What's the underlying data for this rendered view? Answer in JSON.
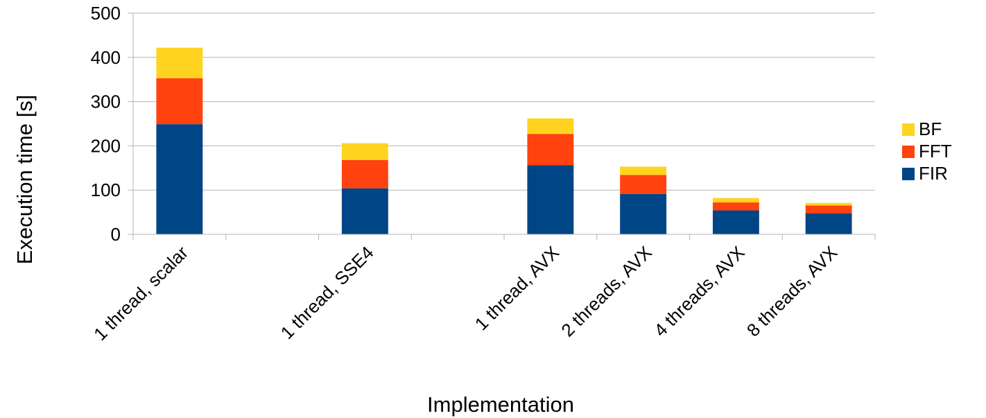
{
  "chart_data": {
    "type": "bar",
    "stacked": true,
    "categories": [
      "1 thread, scalar",
      "",
      "1 thread, SSE4",
      "",
      "1 thread, AVX",
      "2 threads, AVX",
      "4 threads, AVX",
      "8 threads, AVX"
    ],
    "series": [
      {
        "name": "FIR",
        "color": "#004586",
        "values": [
          249,
          null,
          104,
          null,
          156,
          91,
          54,
          47
        ]
      },
      {
        "name": "FFT",
        "color": "#ff420e",
        "values": [
          104,
          null,
          64,
          null,
          71,
          43,
          18,
          18
        ]
      },
      {
        "name": "BF",
        "color": "#ffd320",
        "values": [
          69,
          null,
          38,
          null,
          35,
          19,
          10,
          6
        ]
      }
    ],
    "xlabel": "Implementation",
    "ylabel": "Execution time [s]",
    "ylim": [
      0,
      500
    ],
    "yticks": [
      0,
      100,
      200,
      300,
      400,
      500
    ],
    "grid": true,
    "legend_position": "right",
    "legend_order": [
      "BF",
      "FFT",
      "FIR"
    ]
  }
}
